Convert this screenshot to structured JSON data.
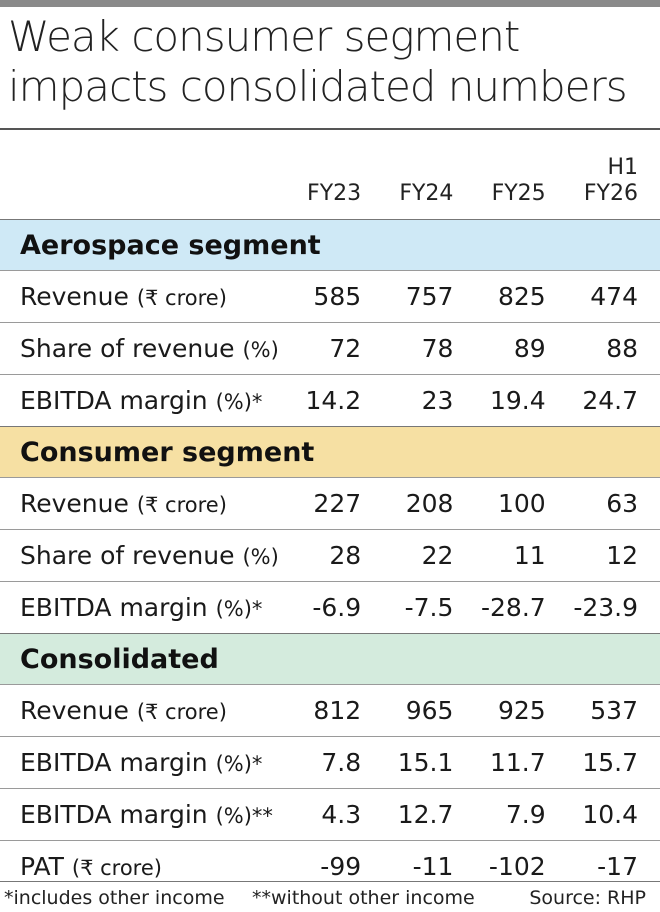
{
  "title": "Weak consumer segment impacts consolidated numbers",
  "columns": [
    "FY23",
    "FY24",
    "FY25",
    "H1 FY26"
  ],
  "header_last_line1": "H1",
  "header_last_line2": "FY26",
  "segments": [
    {
      "name": "Aerospace segment",
      "color": "#cfe9f6",
      "rows": [
        {
          "label": "Revenue",
          "unit": "(₹ crore)",
          "suffix": "",
          "values": [
            "585",
            "757",
            "825",
            "474"
          ]
        },
        {
          "label": "Share of revenue",
          "unit": "(%)",
          "suffix": "",
          "values": [
            "72",
            "78",
            "89",
            "88"
          ]
        },
        {
          "label": "EBITDA margin",
          "unit": "(%)",
          "suffix": "*",
          "values": [
            "14.2",
            "23",
            "19.4",
            "24.7"
          ]
        }
      ]
    },
    {
      "name": "Consumer segment",
      "color": "#f6e0a3",
      "rows": [
        {
          "label": "Revenue",
          "unit": "(₹ crore)",
          "suffix": "",
          "values": [
            "227",
            "208",
            "100",
            "63"
          ]
        },
        {
          "label": "Share of revenue",
          "unit": "(%)",
          "suffix": "",
          "values": [
            "28",
            "22",
            "11",
            "12"
          ]
        },
        {
          "label": "EBITDA margin",
          "unit": "(%)",
          "suffix": "*",
          "values": [
            "-6.9",
            "-7.5",
            "-28.7",
            "-23.9"
          ]
        }
      ]
    },
    {
      "name": "Consolidated",
      "color": "#d4ebdd",
      "rows": [
        {
          "label": "Revenue",
          "unit": "(₹ crore)",
          "suffix": "",
          "values": [
            "812",
            "965",
            "925",
            "537"
          ]
        },
        {
          "label": "EBITDA margin",
          "unit": "(%)",
          "suffix": "*",
          "values": [
            "7.8",
            "15.1",
            "11.7",
            "15.7"
          ]
        },
        {
          "label": "EBITDA margin",
          "unit": "(%)",
          "suffix": "**",
          "values": [
            "4.3",
            "12.7",
            "7.9",
            "10.4"
          ]
        },
        {
          "label": "PAT",
          "unit": "(₹ crore)",
          "suffix": "",
          "values": [
            "-99",
            "-11",
            "-102",
            "-17"
          ]
        }
      ]
    }
  ],
  "footer": {
    "note1": "*includes other income",
    "note2": "**without other income",
    "source": "Source: RHP"
  }
}
